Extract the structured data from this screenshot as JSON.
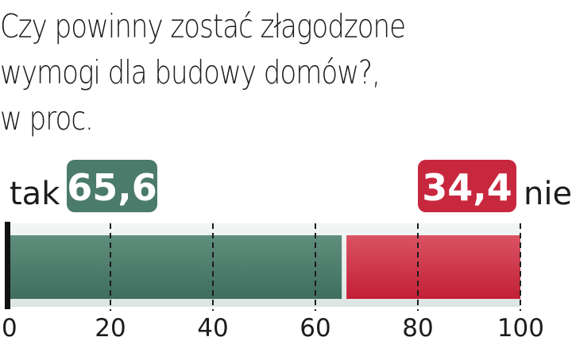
{
  "chart_data": {
    "type": "bar",
    "title_lines": [
      "Czy powinny zostać złagodzone",
      "wymogi dla budowy domów?,",
      "w proc."
    ],
    "stacked": true,
    "orientation": "horizontal",
    "series": [
      {
        "name": "tak",
        "value": 65.6,
        "label": "65,6",
        "color": "#4b7b6a"
      },
      {
        "name": "nie",
        "value": 34.4,
        "label": "34,4",
        "color": "#c8283e"
      }
    ],
    "xlim": [
      0,
      100
    ],
    "xticks": [
      0,
      20,
      40,
      60,
      80,
      100
    ],
    "xtick_labels": [
      "0",
      "20",
      "40",
      "60",
      "80",
      "100"
    ],
    "grid": "dashed vertical",
    "background_color": "#e8eeec"
  }
}
